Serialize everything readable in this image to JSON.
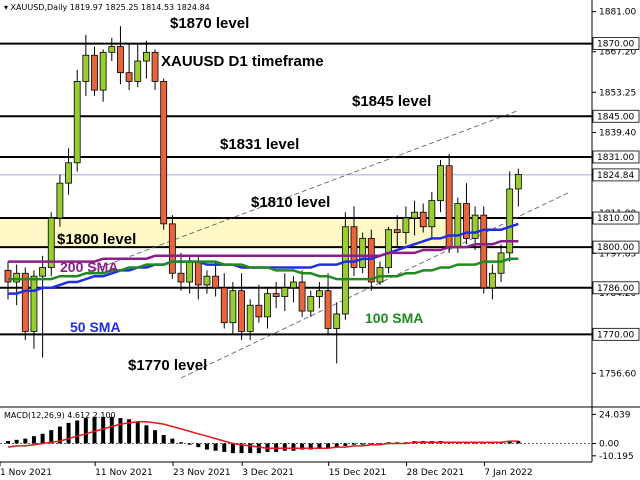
{
  "header": {
    "symbol": "XAUUSD,Daily",
    "ohlc": "1819.97 1825.25 1814.53 1824.84"
  },
  "chart_data": {
    "type": "candlestick",
    "title": "XAUUSD D1 timeframe",
    "ylim": [
      1745,
      1885
    ],
    "price_ticks": [
      "1881.00",
      "1867.20",
      "1853.25",
      "1839.40",
      "1825.45",
      "1811.80",
      "1797.85",
      "1784.20",
      "1770.25",
      "1756.60"
    ],
    "date_ticks": [
      "1 Nov 2021",
      "11 Nov 2021",
      "23 Nov 2021",
      "3 Dec 2021",
      "15 Dec 2021",
      "28 Dec 2021",
      "7 Jan 2022"
    ],
    "current_price": "1824.84",
    "levels": [
      {
        "price": 1870,
        "tag": "1870.00",
        "label": "$1870 level"
      },
      {
        "price": 1845,
        "tag": "1845.00",
        "label": "$1845 level"
      },
      {
        "price": 1831,
        "tag": "1831.00",
        "label": "$1831 level"
      },
      {
        "price": 1810,
        "tag": "1810.00",
        "label": "$1810 level"
      },
      {
        "price": 1800,
        "tag": "1800.00",
        "label": "$1800 level"
      },
      {
        "price": 1786,
        "tag": "1786.00",
        "label": ""
      },
      {
        "price": 1770,
        "tag": "1770.00",
        "label": "$1770 level"
      }
    ],
    "zone": {
      "from": 1800,
      "to": 1810,
      "end_index": 51
    },
    "candles": [
      [
        1792,
        1795,
        1782,
        1788
      ],
      [
        1788,
        1794,
        1780,
        1791
      ],
      [
        1791,
        1793,
        1768,
        1771
      ],
      [
        1771,
        1792,
        1765,
        1790
      ],
      [
        1790,
        1797,
        1762,
        1793
      ],
      [
        1793,
        1812,
        1790,
        1810
      ],
      [
        1810,
        1825,
        1807,
        1822
      ],
      [
        1822,
        1834,
        1818,
        1829
      ],
      [
        1829,
        1861,
        1826,
        1857
      ],
      [
        1857,
        1873,
        1852,
        1866
      ],
      [
        1866,
        1869,
        1852,
        1854
      ],
      [
        1854,
        1868,
        1850,
        1867
      ],
      [
        1867,
        1872,
        1864,
        1869
      ],
      [
        1869,
        1876,
        1856,
        1860
      ],
      [
        1860,
        1870,
        1854,
        1857
      ],
      [
        1857,
        1870,
        1855,
        1864
      ],
      [
        1864,
        1871,
        1858,
        1867
      ],
      [
        1867,
        1868,
        1854,
        1857
      ],
      [
        1857,
        1858,
        1806,
        1808
      ],
      [
        1808,
        1811,
        1789,
        1791
      ],
      [
        1791,
        1798,
        1785,
        1788
      ],
      [
        1788,
        1797,
        1784,
        1795
      ],
      [
        1795,
        1797,
        1782,
        1787
      ],
      [
        1787,
        1792,
        1784,
        1790
      ],
      [
        1790,
        1795,
        1783,
        1786
      ],
      [
        1786,
        1791,
        1772,
        1774
      ],
      [
        1774,
        1788,
        1770,
        1785
      ],
      [
        1785,
        1791,
        1768,
        1771
      ],
      [
        1771,
        1782,
        1768,
        1780
      ],
      [
        1780,
        1787,
        1774,
        1776
      ],
      [
        1776,
        1786,
        1772,
        1784
      ],
      [
        1784,
        1788,
        1779,
        1783
      ],
      [
        1783,
        1791,
        1778,
        1786
      ],
      [
        1786,
        1790,
        1781,
        1788
      ],
      [
        1788,
        1792,
        1776,
        1778
      ],
      [
        1778,
        1785,
        1776,
        1783
      ],
      [
        1783,
        1788,
        1779,
        1785
      ],
      [
        1785,
        1791,
        1770,
        1772
      ],
      [
        1772,
        1781,
        1760,
        1777
      ],
      [
        1777,
        1812,
        1775,
        1807
      ],
      [
        1807,
        1814,
        1790,
        1793
      ],
      [
        1793,
        1805,
        1791,
        1803
      ],
      [
        1803,
        1806,
        1785,
        1788
      ],
      [
        1788,
        1795,
        1787,
        1793
      ],
      [
        1793,
        1807,
        1791,
        1806
      ],
      [
        1806,
        1811,
        1800,
        1805
      ],
      [
        1805,
        1814,
        1801,
        1810
      ],
      [
        1810,
        1816,
        1804,
        1812
      ],
      [
        1812,
        1815,
        1805,
        1807
      ],
      [
        1807,
        1819,
        1803,
        1816
      ],
      [
        1816,
        1830,
        1812,
        1828
      ],
      [
        1828,
        1832,
        1798,
        1800
      ],
      [
        1800,
        1817,
        1798,
        1815
      ],
      [
        1815,
        1822,
        1801,
        1803
      ],
      [
        1803,
        1814,
        1799,
        1811
      ],
      [
        1811,
        1814,
        1784,
        1786
      ],
      [
        1786,
        1794,
        1782,
        1791
      ],
      [
        1791,
        1801,
        1788,
        1798
      ],
      [
        1798,
        1826,
        1795,
        1820
      ],
      [
        1820,
        1827,
        1814,
        1825
      ]
    ],
    "series": [
      {
        "name": "50 SMA",
        "color": "#1f2fe0",
        "values": [
          1784,
          1784,
          1785,
          1785,
          1786,
          1786,
          1787,
          1788,
          1788,
          1789,
          1790,
          1790,
          1791,
          1792,
          1792,
          1793,
          1793,
          1794,
          1794,
          1795,
          1795,
          1795,
          1795,
          1794,
          1794,
          1794,
          1794,
          1793,
          1793,
          1793,
          1793,
          1793,
          1793,
          1793,
          1793,
          1793,
          1794,
          1794,
          1794,
          1795,
          1795,
          1796,
          1796,
          1797,
          1798,
          1799,
          1800,
          1801,
          1802,
          1803,
          1803,
          1804,
          1804,
          1805,
          1805,
          1806,
          1806,
          1806,
          1807,
          1808
        ]
      },
      {
        "name": "100 SMA",
        "color": "#1f8a1f",
        "values": [
          1789,
          1789,
          1789,
          1789,
          1789,
          1789,
          1790,
          1790,
          1790,
          1791,
          1791,
          1791,
          1792,
          1792,
          1793,
          1793,
          1794,
          1794,
          1794,
          1795,
          1795,
          1795,
          1795,
          1795,
          1795,
          1794,
          1794,
          1794,
          1793,
          1793,
          1793,
          1792,
          1792,
          1792,
          1791,
          1791,
          1790,
          1790,
          1789,
          1789,
          1789,
          1789,
          1789,
          1790,
          1790,
          1790,
          1791,
          1791,
          1792,
          1792,
          1793,
          1793,
          1794,
          1794,
          1794,
          1795,
          1795,
          1795,
          1796,
          1796
        ]
      },
      {
        "name": "200 SMA",
        "color": "#8b1e8b",
        "values": [
          1795,
          1795,
          1795,
          1795,
          1795,
          1795,
          1795,
          1795,
          1795,
          1795,
          1795,
          1796,
          1796,
          1796,
          1796,
          1796,
          1796,
          1797,
          1797,
          1797,
          1797,
          1797,
          1797,
          1797,
          1797,
          1797,
          1797,
          1797,
          1797,
          1797,
          1797,
          1797,
          1797,
          1797,
          1797,
          1797,
          1797,
          1797,
          1797,
          1797,
          1797,
          1797,
          1797,
          1797,
          1798,
          1798,
          1798,
          1798,
          1799,
          1799,
          1799,
          1800,
          1800,
          1800,
          1801,
          1801,
          1801,
          1802,
          1802,
          1802
        ]
      }
    ],
    "channel_lines": [
      {
        "from": [
          8,
          1790
        ],
        "to": [
          59,
          1847
        ]
      },
      {
        "from": [
          20,
          1755
        ],
        "to": [
          65,
          1819
        ]
      }
    ],
    "macd": {
      "label": "MACD(12,26,9) 4.612 2.100",
      "ticks": [
        "24.039",
        "0.00",
        "-10.195"
      ],
      "ylim": [
        -12,
        26
      ],
      "histogram": [
        2,
        3,
        4,
        6,
        8,
        11,
        14,
        17,
        19,
        21,
        22,
        22,
        22,
        21,
        20,
        18,
        15,
        11,
        7,
        4,
        1,
        -1,
        -3,
        -5,
        -6,
        -7,
        -8,
        -8,
        -8,
        -8,
        -7,
        -7,
        -6,
        -6,
        -5,
        -5,
        -4,
        -4,
        -3,
        -2,
        -1,
        -1,
        0,
        0,
        1,
        1,
        1,
        2,
        2,
        2,
        2,
        1,
        1,
        1,
        1,
        1,
        1,
        1,
        2,
        2
      ],
      "signal": [
        -3,
        -2,
        -2,
        -1,
        0,
        1,
        2,
        4,
        6,
        8,
        10,
        12,
        14,
        16,
        17,
        18,
        18,
        17,
        16,
        14,
        12,
        10,
        8,
        6,
        4,
        2,
        0,
        -1,
        -2,
        -3,
        -4,
        -4,
        -4,
        -4,
        -4,
        -4,
        -4,
        -4,
        -3,
        -3,
        -2,
        -2,
        -1,
        -1,
        0,
        0,
        0,
        1,
        1,
        1,
        1,
        1,
        1,
        1,
        1,
        1,
        1,
        1,
        2,
        2
      ]
    },
    "grid": false
  },
  "annotations": {
    "sma50": "50 SMA",
    "sma100": "100 SMA",
    "sma200": "200 SMA"
  },
  "colors": {
    "bull": "#9acd32",
    "bear": "#e8643c",
    "zone": "#fff8c6",
    "price_line": "#8a8ad0",
    "macd_signal": "#e41a1a"
  }
}
